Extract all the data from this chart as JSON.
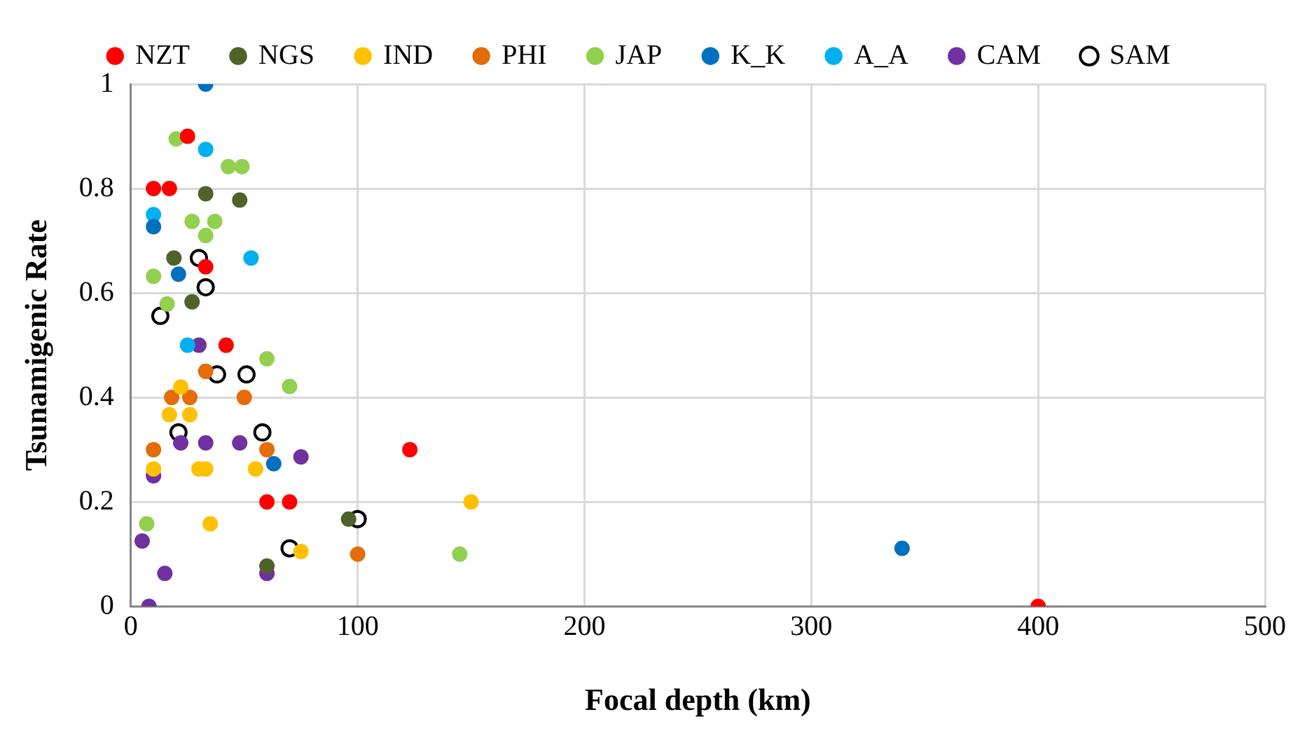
{
  "chart_data": {
    "type": "scatter",
    "xlabel": "Focal depth (km)",
    "ylabel": "Tsunamigenic Rate",
    "xlim": [
      0,
      500
    ],
    "xticks": [
      0,
      100,
      200,
      300,
      400,
      500
    ],
    "ylim": [
      0,
      1
    ],
    "yticks": [
      0,
      0.2,
      0.4,
      0.6,
      0.8,
      1
    ],
    "grid": true,
    "legend": "top",
    "marker": "circle",
    "series": [
      {
        "name": "NZT",
        "color": "#ff0000",
        "x": [
          10,
          17,
          25,
          33,
          42,
          60,
          70,
          123,
          400
        ],
        "values": [
          0.8,
          0.8,
          0.9,
          0.65,
          0.5,
          0.2,
          0.2,
          0.3,
          0
        ]
      },
      {
        "name": "NGS",
        "color": "#4f6228",
        "x": [
          19,
          33,
          48,
          27,
          96,
          60
        ],
        "values": [
          0.667,
          0.79,
          0.778,
          0.583,
          0.167,
          0.077
        ]
      },
      {
        "name": "IND",
        "color": "#ffc000",
        "x": [
          22,
          17,
          26,
          10,
          30,
          33,
          55,
          35,
          75,
          150
        ],
        "values": [
          0.42,
          0.367,
          0.367,
          0.263,
          0.263,
          0.263,
          0.263,
          0.158,
          0.105,
          0.2
        ]
      },
      {
        "name": "PHI",
        "color": "#e46c0a",
        "x": [
          33,
          18,
          26,
          50,
          10,
          60,
          100
        ],
        "values": [
          0.45,
          0.4,
          0.4,
          0.4,
          0.3,
          0.3,
          0.1
        ]
      },
      {
        "name": "JAP",
        "color": "#92d050",
        "x": [
          20,
          43,
          49,
          27,
          37,
          33,
          10,
          16,
          60,
          70,
          7,
          145
        ],
        "values": [
          0.895,
          0.842,
          0.842,
          0.737,
          0.737,
          0.71,
          0.632,
          0.579,
          0.474,
          0.421,
          0.158,
          0.1
        ]
      },
      {
        "name": "K_K",
        "color": "#0070c0",
        "x": [
          33,
          10,
          21,
          63,
          340
        ],
        "values": [
          1,
          0.727,
          0.636,
          0.273,
          0.111
        ]
      },
      {
        "name": "A_A",
        "color": "#00b0f0",
        "x": [
          33,
          10,
          53,
          25
        ],
        "values": [
          0.875,
          0.75,
          0.667,
          0.5
        ]
      },
      {
        "name": "CAM",
        "color": "#7030a0",
        "x": [
          30,
          22,
          33,
          48,
          75,
          10,
          5,
          15,
          60,
          8
        ],
        "values": [
          0.5,
          0.313,
          0.313,
          0.313,
          0.286,
          0.25,
          0.125,
          0.063,
          0.063,
          0
        ]
      },
      {
        "name": "SAM",
        "color": "#000000",
        "x": [
          30,
          33,
          13,
          38,
          51,
          58,
          21,
          70,
          100
        ],
        "values": [
          0.667,
          0.611,
          0.556,
          0.444,
          0.444,
          0.333,
          0.333,
          0.111,
          0.167
        ]
      }
    ]
  }
}
